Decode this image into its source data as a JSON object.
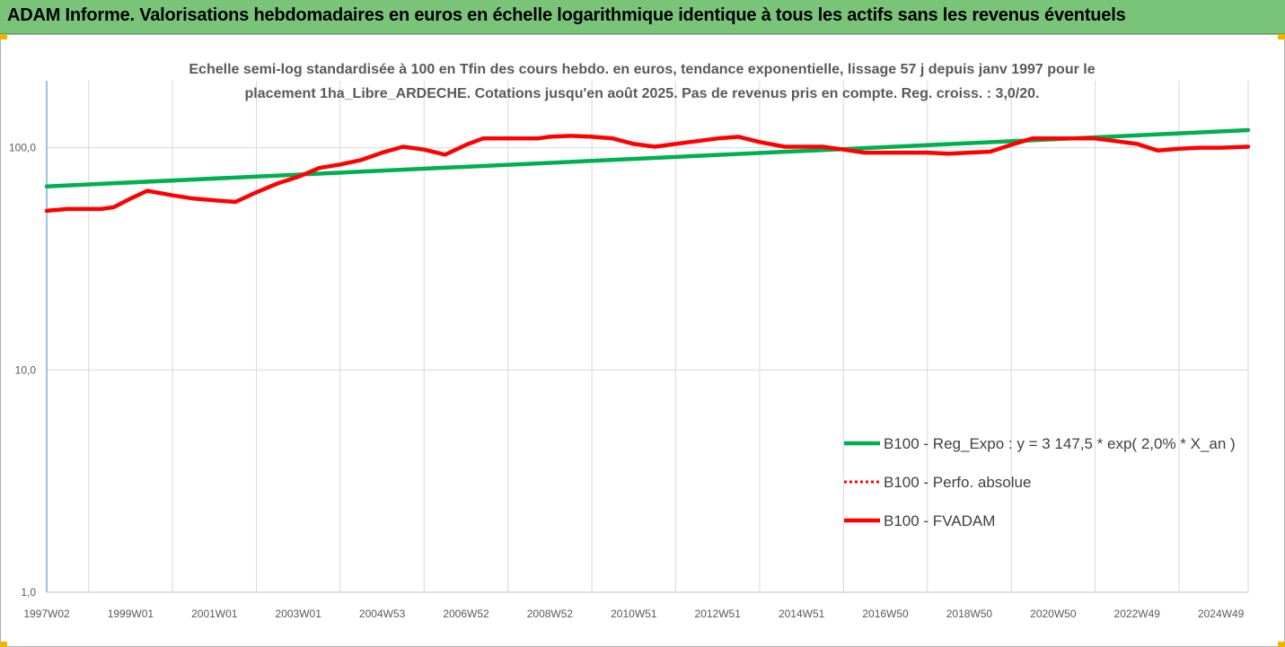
{
  "banner": {
    "title": "ADAM Informe. Valorisations hebdomadaires en euros en échelle logarithmique identique à tous les actifs sans les revenus éventuels"
  },
  "colors": {
    "banner_bg": "#79c478",
    "corner_accent": "#f0b400",
    "regression": "#00b050",
    "series": "#ff0000"
  },
  "chart_data": {
    "type": "line",
    "title_lines": [
      "Echelle semi-log standardisée à 100 en Tfin des cours hebdo. en euros, tendance exponentielle, lissage 57 j depuis janv 1997 pour le",
      "placement 1ha_Libre_ARDECHE. Cotations jusqu'en août 2025. Pas de revenus pris en compte. Reg. croiss. : 3,0/20."
    ],
    "y_scale": "log",
    "ylim": [
      1,
      200
    ],
    "y_ticks": [
      {
        "value": 1,
        "label": "1,0"
      },
      {
        "value": 10,
        "label": "10,0"
      },
      {
        "value": 100,
        "label": "100,0"
      }
    ],
    "xlim": [
      1997.0,
      2025.65
    ],
    "x_ticks": [
      {
        "x": 1997.0,
        "label": "1997W02"
      },
      {
        "x": 1999.0,
        "label": "1999W01"
      },
      {
        "x": 2001.0,
        "label": "2001W01"
      },
      {
        "x": 2003.0,
        "label": "2003W01"
      },
      {
        "x": 2005.0,
        "label": "2004W53"
      },
      {
        "x": 2007.0,
        "label": "2006W52"
      },
      {
        "x": 2009.0,
        "label": "2008W52"
      },
      {
        "x": 2011.0,
        "label": "2010W51"
      },
      {
        "x": 2013.0,
        "label": "2012W51"
      },
      {
        "x": 2015.0,
        "label": "2014W51"
      },
      {
        "x": 2017.0,
        "label": "2016W50"
      },
      {
        "x": 2019.0,
        "label": "2018W50"
      },
      {
        "x": 2021.0,
        "label": "2020W50"
      },
      {
        "x": 2023.0,
        "label": "2022W49"
      },
      {
        "x": 2025.0,
        "label": "2024W49"
      }
    ],
    "grid": "vertical",
    "legend_position": "right",
    "series": [
      {
        "name": "B100 - Reg_Expo : y = 3 147,5 * exp( 2,0% *  X_an )",
        "color": "#00b050",
        "style": "solid",
        "points": [
          [
            1997.0,
            67
          ],
          [
            2025.65,
            120
          ]
        ]
      },
      {
        "name": "B100 - Perfo. absolue",
        "color": "#ff0000",
        "style": "dotted",
        "points": []
      },
      {
        "name": "B100 - FVADAM",
        "color": "#ff0000",
        "style": "solid",
        "points": [
          [
            1997.0,
            52
          ],
          [
            1997.5,
            53
          ],
          [
            1998.3,
            53
          ],
          [
            1998.6,
            54
          ],
          [
            1999.0,
            59
          ],
          [
            1999.4,
            64
          ],
          [
            2000.0,
            61
          ],
          [
            2000.5,
            59
          ],
          [
            2001.0,
            58
          ],
          [
            2001.5,
            57
          ],
          [
            2002.0,
            63
          ],
          [
            2002.5,
            69
          ],
          [
            2003.0,
            74
          ],
          [
            2003.5,
            81
          ],
          [
            2004.0,
            84
          ],
          [
            2004.5,
            88
          ],
          [
            2005.0,
            95
          ],
          [
            2005.5,
            101
          ],
          [
            2006.0,
            98
          ],
          [
            2006.5,
            93
          ],
          [
            2007.0,
            103
          ],
          [
            2007.4,
            110
          ],
          [
            2008.0,
            110
          ],
          [
            2008.7,
            110
          ],
          [
            2009.0,
            112
          ],
          [
            2009.5,
            113
          ],
          [
            2010.0,
            112
          ],
          [
            2010.5,
            110
          ],
          [
            2011.0,
            104
          ],
          [
            2011.5,
            101
          ],
          [
            2012.0,
            104
          ],
          [
            2012.5,
            107
          ],
          [
            2013.0,
            110
          ],
          [
            2013.5,
            112
          ],
          [
            2014.0,
            106
          ],
          [
            2014.6,
            101
          ],
          [
            2015.5,
            101
          ],
          [
            2016.0,
            98
          ],
          [
            2016.5,
            95
          ],
          [
            2017.0,
            95
          ],
          [
            2018.0,
            95
          ],
          [
            2018.5,
            94
          ],
          [
            2019.0,
            95
          ],
          [
            2019.5,
            96
          ],
          [
            2020.0,
            103
          ],
          [
            2020.5,
            110
          ],
          [
            2021.0,
            110
          ],
          [
            2022.0,
            110
          ],
          [
            2022.5,
            107
          ],
          [
            2023.0,
            104
          ],
          [
            2023.5,
            97
          ],
          [
            2024.0,
            99
          ],
          [
            2024.5,
            100
          ],
          [
            2025.0,
            100
          ],
          [
            2025.65,
            101
          ]
        ]
      }
    ]
  }
}
